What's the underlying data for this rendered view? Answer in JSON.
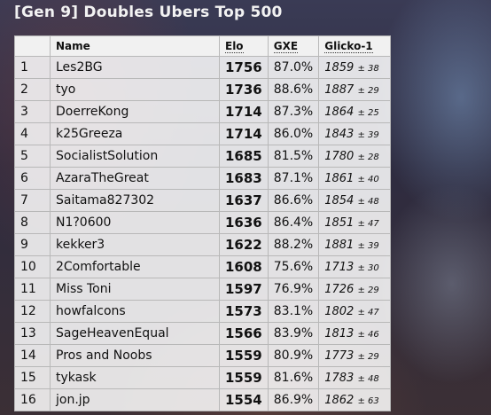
{
  "page": {
    "title": "[Gen 9] Doubles Ubers Top 500"
  },
  "table": {
    "headers": {
      "rank": "",
      "name": "Name",
      "elo": "Elo",
      "gxe": "GXE",
      "glicko": "Glicko-1"
    },
    "rows": [
      {
        "rank": "1",
        "name": "Les2BG",
        "elo": "1756",
        "gxe": "87.0%",
        "glicko": "1859",
        "dev": "± 38"
      },
      {
        "rank": "2",
        "name": "tyo",
        "elo": "1736",
        "gxe": "88.6%",
        "glicko": "1887",
        "dev": "± 29"
      },
      {
        "rank": "3",
        "name": "DoerreKong",
        "elo": "1714",
        "gxe": "87.3%",
        "glicko": "1864",
        "dev": "± 25"
      },
      {
        "rank": "4",
        "name": "k25Greeza",
        "elo": "1714",
        "gxe": "86.0%",
        "glicko": "1843",
        "dev": "± 39"
      },
      {
        "rank": "5",
        "name": "SocialistSolution",
        "elo": "1685",
        "gxe": "81.5%",
        "glicko": "1780",
        "dev": "± 28"
      },
      {
        "rank": "6",
        "name": "AzaraTheGreat",
        "elo": "1683",
        "gxe": "87.1%",
        "glicko": "1861",
        "dev": "± 40"
      },
      {
        "rank": "7",
        "name": "Saitama827302",
        "elo": "1637",
        "gxe": "86.6%",
        "glicko": "1854",
        "dev": "± 48"
      },
      {
        "rank": "8",
        "name": "N1?0600",
        "elo": "1636",
        "gxe": "86.4%",
        "glicko": "1851",
        "dev": "± 47"
      },
      {
        "rank": "9",
        "name": "kekker3",
        "elo": "1622",
        "gxe": "88.2%",
        "glicko": "1881",
        "dev": "± 39"
      },
      {
        "rank": "10",
        "name": "2Comfortable",
        "elo": "1608",
        "gxe": "75.6%",
        "glicko": "1713",
        "dev": "± 30"
      },
      {
        "rank": "11",
        "name": "Miss Toni",
        "elo": "1597",
        "gxe": "76.9%",
        "glicko": "1726",
        "dev": "± 29"
      },
      {
        "rank": "12",
        "name": "howfalcons",
        "elo": "1573",
        "gxe": "83.1%",
        "glicko": "1802",
        "dev": "± 47"
      },
      {
        "rank": "13",
        "name": "SageHeavenEqual",
        "elo": "1566",
        "gxe": "83.9%",
        "glicko": "1813",
        "dev": "± 46"
      },
      {
        "rank": "14",
        "name": "Pros and Noobs",
        "elo": "1559",
        "gxe": "80.9%",
        "glicko": "1773",
        "dev": "± 29"
      },
      {
        "rank": "15",
        "name": "tykask",
        "elo": "1559",
        "gxe": "81.6%",
        "glicko": "1783",
        "dev": "± 48"
      },
      {
        "rank": "16",
        "name": "jon.jp",
        "elo": "1554",
        "gxe": "86.9%",
        "glicko": "1862",
        "dev": "± 63"
      }
    ]
  }
}
